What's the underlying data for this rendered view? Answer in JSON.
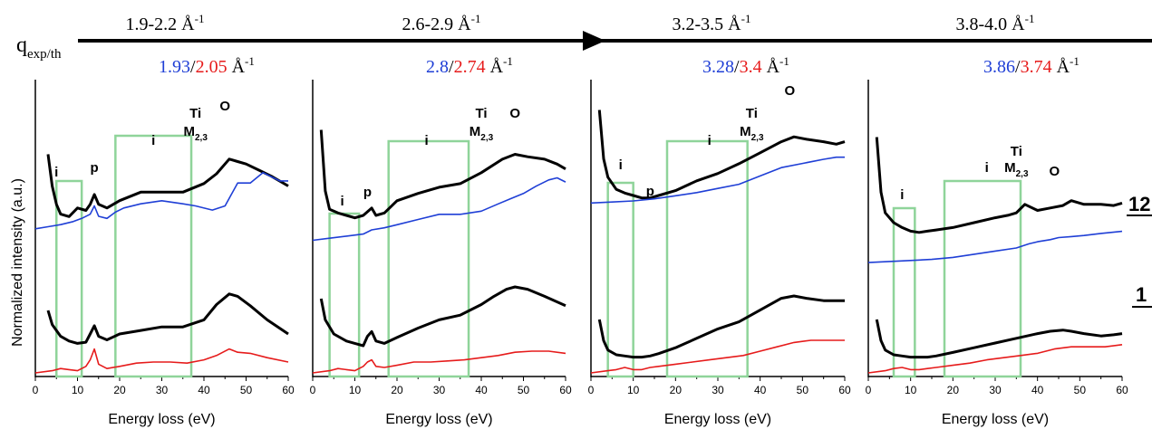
{
  "figure": {
    "q_label_main": "q",
    "q_label_sub": "exp/th",
    "ylabel": "Normalized intensity (a.u.)",
    "right_labels": [
      "12",
      "1"
    ],
    "colors": {
      "exp": "#1f3fd6",
      "th": "#e61b1b",
      "black": "#000000",
      "box": "#8fd49a"
    }
  },
  "chart_data": [
    {
      "type": "line",
      "range_label": "1.9-2.2 Å",
      "range_sup": "-1",
      "q_exp": "1.93",
      "q_th": "2.05",
      "q_unit": "Å",
      "q_unit_sup": "-1",
      "xlabel": "Energy loss (eV)",
      "xlim": [
        0,
        60
      ],
      "ticks": [
        0,
        10,
        20,
        30,
        40,
        50,
        60
      ],
      "boxes": [
        [
          5,
          11
        ],
        [
          19,
          37
        ]
      ],
      "annotations": [
        "i",
        "p",
        "i",
        "Ti",
        "M2,3",
        "O"
      ],
      "annotation_texts": {
        "i": "i",
        "p": "p",
        "ti": "Ti",
        "m": "M",
        "m_sub": "2,3",
        "o": "O"
      },
      "series": [
        {
          "name": "",
          "color": "black",
          "x": [
            3,
            4,
            5,
            6,
            8,
            10,
            12,
            13,
            14,
            15,
            17,
            20,
            25,
            30,
            35,
            40,
            43,
            46,
            48,
            50,
            53,
            56,
            60
          ],
          "y": [
            96,
            70,
            55,
            47,
            45,
            52,
            50,
            55,
            63,
            55,
            52,
            58,
            65,
            65,
            65,
            72,
            80,
            92,
            90,
            88,
            83,
            78,
            70
          ]
        },
        {
          "name": "",
          "color": "blue",
          "x": [
            0,
            3,
            6,
            9,
            11,
            13,
            14,
            15,
            17,
            19,
            21,
            25,
            30,
            35,
            38,
            42,
            45,
            48,
            51,
            54,
            58,
            60
          ],
          "y": [
            28,
            30,
            32,
            35,
            38,
            42,
            50,
            40,
            38,
            44,
            48,
            52,
            55,
            52,
            50,
            46,
            50,
            72,
            72,
            82,
            74,
            74
          ]
        },
        {
          "name": "",
          "color": "black",
          "x": [
            3,
            4,
            6,
            8,
            10,
            12,
            13,
            14,
            15,
            17,
            20,
            25,
            30,
            35,
            40,
            43,
            46,
            48,
            51,
            55,
            60
          ],
          "y": [
            40,
            28,
            18,
            14,
            12,
            13,
            20,
            27,
            18,
            15,
            20,
            23,
            26,
            26,
            32,
            45,
            54,
            52,
            44,
            32,
            20
          ]
        },
        {
          "name": "",
          "color": "red",
          "x": [
            0,
            4,
            6,
            8,
            10,
            12,
            13,
            14,
            15,
            17,
            20,
            24,
            28,
            32,
            36,
            40,
            43,
            46,
            48,
            51,
            55,
            60
          ],
          "y": [
            0,
            2,
            4,
            3,
            2,
            6,
            12,
            22,
            8,
            4,
            6,
            9,
            10,
            10,
            9,
            12,
            16,
            22,
            19,
            18,
            14,
            10
          ]
        }
      ]
    },
    {
      "type": "line",
      "range_label": "2.6-2.9 Å",
      "range_sup": "-1",
      "q_exp": "2.8",
      "q_th": "2.74",
      "q_unit": "Å",
      "q_unit_sup": "-1",
      "xlabel": "Energy loss (eV)",
      "xlim": [
        0,
        60
      ],
      "ticks": [
        0,
        10,
        20,
        30,
        40,
        50,
        60
      ],
      "boxes": [
        [
          4,
          11
        ],
        [
          18,
          37
        ]
      ],
      "annotations": [
        "i",
        "p",
        "i",
        "Ti",
        "M2,3",
        "O"
      ],
      "annotation_texts": {
        "i": "i",
        "p": "p",
        "ti": "Ti",
        "m": "M",
        "m_sub": "2,3",
        "o": "O"
      },
      "series": [
        {
          "name": "",
          "color": "black",
          "x": [
            2,
            3,
            4,
            6,
            8,
            10,
            12,
            14,
            15,
            17,
            20,
            25,
            30,
            35,
            40,
            45,
            48,
            51,
            55,
            58,
            60
          ],
          "y": [
            110,
            60,
            45,
            42,
            40,
            38,
            40,
            46,
            40,
            42,
            52,
            58,
            63,
            66,
            75,
            86,
            90,
            88,
            86,
            82,
            78
          ]
        },
        {
          "name": "",
          "color": "blue",
          "x": [
            0,
            4,
            8,
            12,
            14,
            17,
            20,
            25,
            30,
            35,
            40,
            44,
            47,
            50,
            53,
            56,
            58,
            60
          ],
          "y": [
            30,
            32,
            34,
            36,
            40,
            42,
            45,
            50,
            55,
            55,
            58,
            65,
            70,
            75,
            82,
            88,
            90,
            86
          ]
        },
        {
          "name": "",
          "color": "black",
          "x": [
            2,
            3,
            5,
            8,
            10,
            12,
            13,
            14,
            15,
            17,
            20,
            25,
            30,
            35,
            40,
            43,
            46,
            48,
            51,
            55,
            60
          ],
          "y": [
            50,
            32,
            20,
            14,
            12,
            10,
            18,
            22,
            14,
            12,
            17,
            25,
            32,
            36,
            45,
            52,
            58,
            60,
            58,
            52,
            44
          ]
        },
        {
          "name": "",
          "color": "red",
          "x": [
            0,
            4,
            6,
            8,
            10,
            12,
            13,
            14,
            15,
            17,
            20,
            24,
            28,
            32,
            36,
            40,
            44,
            48,
            52,
            56,
            60
          ],
          "y": [
            0,
            2,
            4,
            3,
            2,
            6,
            10,
            12,
            6,
            5,
            7,
            10,
            10,
            11,
            12,
            14,
            16,
            19,
            20,
            20,
            18
          ]
        }
      ]
    },
    {
      "type": "line",
      "range_label": "3.2-3.5 Å",
      "range_sup": "-1",
      "q_exp": "3.28",
      "q_th": "3.4",
      "q_unit": "Å",
      "q_unit_sup": "-1",
      "xlabel": "Energy loss (eV)",
      "xlim": [
        0,
        60
      ],
      "ticks": [
        0,
        10,
        20,
        30,
        40,
        50,
        60
      ],
      "boxes": [
        [
          4,
          10
        ],
        [
          18,
          37
        ]
      ],
      "annotations": [
        "i",
        "p",
        "i",
        "Ti",
        "M2,3",
        "O"
      ],
      "annotation_texts": {
        "i": "i",
        "p": "p",
        "ti": "Ti",
        "m": "M",
        "m_sub": "2,3",
        "o": "O"
      },
      "series": [
        {
          "name": "",
          "color": "black",
          "x": [
            2,
            3,
            4,
            6,
            8,
            10,
            12,
            14,
            16,
            20,
            25,
            30,
            35,
            40,
            45,
            48,
            51,
            55,
            58,
            60
          ],
          "y": [
            110,
            70,
            55,
            45,
            42,
            40,
            38,
            38,
            40,
            44,
            52,
            58,
            66,
            75,
            84,
            88,
            86,
            84,
            82,
            84
          ]
        },
        {
          "name": "",
          "color": "blue",
          "x": [
            0,
            5,
            10,
            15,
            20,
            25,
            30,
            35,
            40,
            45,
            50,
            55,
            58,
            60
          ],
          "y": [
            38,
            39,
            40,
            42,
            45,
            48,
            52,
            56,
            64,
            72,
            76,
            80,
            82,
            82
          ]
        },
        {
          "name": "",
          "color": "black",
          "x": [
            2,
            3,
            4,
            6,
            8,
            10,
            12,
            14,
            16,
            20,
            25,
            30,
            35,
            40,
            45,
            48,
            51,
            55,
            60
          ],
          "y": [
            40,
            22,
            14,
            10,
            9,
            8,
            8,
            9,
            11,
            16,
            24,
            32,
            38,
            48,
            58,
            60,
            58,
            56,
            56
          ]
        },
        {
          "name": "",
          "color": "red",
          "x": [
            0,
            4,
            6,
            8,
            10,
            12,
            14,
            16,
            20,
            24,
            28,
            32,
            36,
            40,
            44,
            48,
            52,
            56,
            60
          ],
          "y": [
            0,
            2,
            3,
            5,
            3,
            3,
            5,
            6,
            8,
            10,
            12,
            14,
            16,
            20,
            24,
            28,
            30,
            30,
            30
          ]
        }
      ]
    },
    {
      "type": "line",
      "range_label": "3.8-4.0 Å",
      "range_sup": "-1",
      "q_exp": "3.86",
      "q_th": "3.74",
      "q_unit": "Å",
      "q_unit_sup": "-1",
      "xlabel": "Energy loss (eV)",
      "xlim": [
        0,
        60
      ],
      "ticks": [
        0,
        10,
        20,
        30,
        40,
        50,
        60
      ],
      "boxes": [
        [
          6,
          11
        ],
        [
          18,
          36
        ]
      ],
      "annotations": [
        "i",
        "i",
        "Ti",
        "M2,3",
        "O"
      ],
      "annotation_texts": {
        "i": "i",
        "ti": "Ti",
        "m": "M",
        "m_sub": "2,3",
        "o": "O"
      },
      "series": [
        {
          "name": "",
          "color": "black",
          "x": [
            2,
            3,
            4,
            6,
            8,
            10,
            12,
            14,
            16,
            20,
            25,
            30,
            33,
            35,
            37,
            40,
            43,
            46,
            48,
            51,
            55,
            58,
            60
          ],
          "y": [
            110,
            65,
            48,
            40,
            36,
            33,
            32,
            33,
            34,
            36,
            40,
            44,
            46,
            48,
            55,
            50,
            52,
            54,
            58,
            55,
            55,
            54,
            56
          ]
        },
        {
          "name": "",
          "color": "blue",
          "x": [
            0,
            5,
            10,
            15,
            20,
            25,
            30,
            35,
            38,
            40,
            43,
            45,
            48,
            51,
            55,
            60
          ],
          "y": [
            26,
            27,
            28,
            29,
            31,
            34,
            37,
            40,
            44,
            46,
            48,
            50,
            51,
            52,
            54,
            56
          ]
        },
        {
          "name": "",
          "color": "black",
          "x": [
            2,
            3,
            4,
            6,
            8,
            10,
            12,
            14,
            16,
            20,
            25,
            30,
            35,
            40,
            43,
            46,
            48,
            51,
            55,
            58,
            60
          ],
          "y": [
            40,
            22,
            14,
            10,
            9,
            8,
            8,
            8,
            9,
            12,
            16,
            20,
            24,
            28,
            30,
            31,
            30,
            28,
            26,
            27,
            28
          ]
        },
        {
          "name": "",
          "color": "red",
          "x": [
            0,
            4,
            6,
            8,
            10,
            12,
            14,
            16,
            20,
            24,
            28,
            32,
            36,
            40,
            44,
            48,
            52,
            56,
            60
          ],
          "y": [
            0,
            2,
            4,
            5,
            3,
            3,
            4,
            5,
            7,
            9,
            12,
            14,
            16,
            18,
            22,
            24,
            24,
            24,
            26
          ]
        }
      ]
    }
  ]
}
